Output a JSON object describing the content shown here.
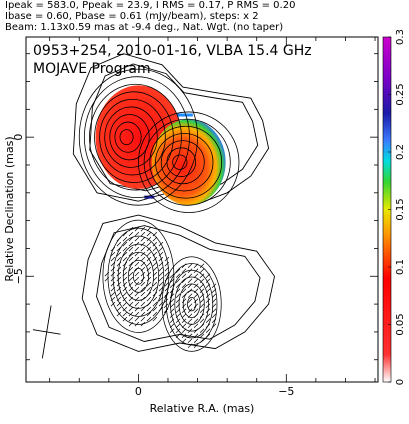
{
  "header": {
    "line1": "Ipeak = 583.0, Ppeak = 23.9, I RMS = 0.17, P RMS = 0.20",
    "line2": "Ibase = 0.60, Pbase = 0.61 (mJy/beam), steps: x 2",
    "line3": "Beam: 1.13x0.59 mas at -9.4 deg., Nat. Wgt. (no taper)"
  },
  "chart_data": {
    "type": "heatmap",
    "title": "0953+254, 2010-01-16, VLBA 15.4 GHz",
    "subtitle": "MOJAVE Program",
    "xlabel": "Relative R.A. (mas)",
    "ylabel": "Relative Declination (mas)",
    "xlim": [
      3.8,
      -8.1
    ],
    "ylim": [
      -8.8,
      3.6
    ],
    "x_ticks": [
      {
        "value": 0,
        "label": "0"
      },
      {
        "value": -5,
        "label": "−5"
      }
    ],
    "y_ticks": [
      {
        "value": 0,
        "label": "0"
      },
      {
        "value": -5,
        "label": "−5"
      }
    ],
    "colorbar": {
      "min": 0,
      "max": 0.3,
      "ticks": [
        {
          "value": 0.3,
          "label": "0.3"
        },
        {
          "value": 0.25,
          "label": "0.25"
        },
        {
          "value": 0.2,
          "label": "0.2"
        },
        {
          "value": 0.15,
          "label": "0.15"
        },
        {
          "value": 0.1,
          "label": "0.1"
        },
        {
          "value": 0.05,
          "label": "0.05"
        },
        {
          "value": 0,
          "label": "0"
        }
      ]
    },
    "beam": {
      "major_mas": 1.13,
      "minor_mas": 0.59,
      "pa_deg": -9.4,
      "center": [
        3.1,
        -7.0
      ]
    },
    "top_components": [
      {
        "x": 0.0,
        "y": 0.0,
        "level": 0.01,
        "outer_rx": 2.0,
        "outer_ry": 2.3
      },
      {
        "x": -1.7,
        "y": -0.9,
        "level": 0.01,
        "outer_rx": 1.7,
        "outer_ry": 1.7
      }
    ],
    "bottom_components": [
      {
        "x": 0.0,
        "y": -5.0,
        "rx": 1.2,
        "ry": 1.9
      },
      {
        "x": -1.8,
        "y": -6.0,
        "rx": 1.0,
        "ry": 1.6
      }
    ]
  }
}
